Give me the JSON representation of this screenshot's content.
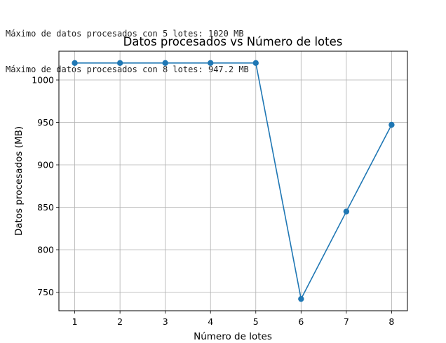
{
  "console": {
    "lines": [
      "Máximo de datos procesados con 5 lotes: 1020 MB",
      "Máximo de datos procesados con 8 lotes: 947.2 MB"
    ]
  },
  "chart_data": {
    "type": "line",
    "title": "Datos procesados vs Número de lotes",
    "xlabel": "Número de lotes",
    "ylabel": "Datos procesados (MB)",
    "x": [
      1,
      2,
      3,
      4,
      5,
      6,
      7,
      8
    ],
    "y": [
      1020,
      1020,
      1020,
      1020,
      1020,
      742,
      845,
      947.2
    ],
    "xticks": [
      1,
      2,
      3,
      4,
      5,
      6,
      7,
      8
    ],
    "yticks": [
      750,
      800,
      850,
      900,
      950,
      1000
    ],
    "xlim": [
      0.65,
      8.35
    ],
    "ylim": [
      728.1,
      1033.9
    ],
    "grid": true,
    "marker": "circle",
    "color": "#1f77b4"
  }
}
